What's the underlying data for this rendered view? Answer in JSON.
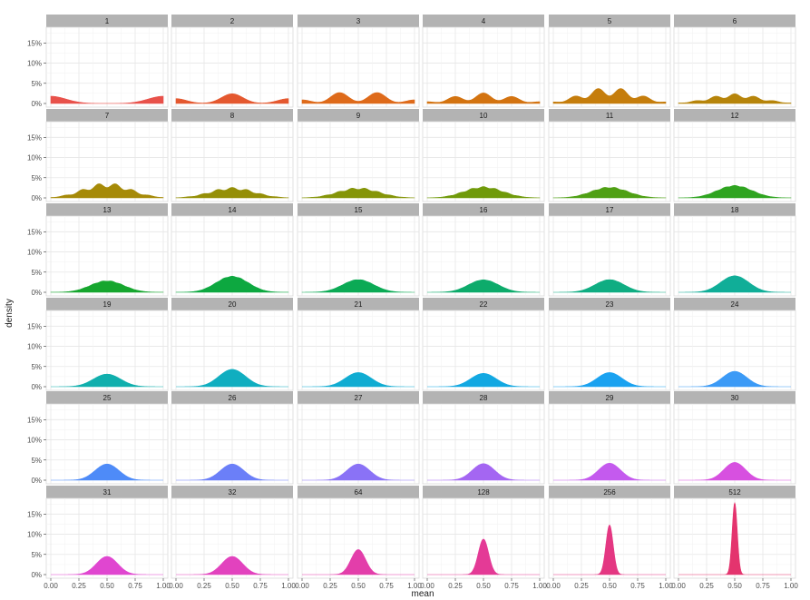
{
  "chart_data": {
    "type": "area",
    "xlabel": "mean",
    "ylabel": "density",
    "xlim": [
      0,
      1
    ],
    "ylim": [
      0,
      0.18
    ],
    "x_ticks": [
      0,
      0.25,
      0.5,
      0.75,
      1
    ],
    "x_tick_labels": [
      "0.00",
      "0.25",
      "0.50",
      "0.75",
      "1.00"
    ],
    "y_ticks": [
      0,
      0.05,
      0.1,
      0.15
    ],
    "y_tick_labels": [
      "0%",
      "5%",
      "10%",
      "15%"
    ],
    "grid": true,
    "legend": "none",
    "facet_columns": 6,
    "panels": [
      {
        "label": "1",
        "n": 1,
        "peak": 0.018,
        "color": "#E8514A"
      },
      {
        "label": "2",
        "n": 2,
        "peak": 0.024,
        "color": "#E4582F"
      },
      {
        "label": "3",
        "n": 3,
        "peak": 0.027,
        "color": "#DE6A1A"
      },
      {
        "label": "4",
        "n": 4,
        "peak": 0.026,
        "color": "#D37310"
      },
      {
        "label": "5",
        "n": 5,
        "peak": 0.037,
        "color": "#C57D0C"
      },
      {
        "label": "6",
        "n": 6,
        "peak": 0.024,
        "color": "#B6840A"
      },
      {
        "label": "7",
        "n": 7,
        "peak": 0.035,
        "color": "#A68A08"
      },
      {
        "label": "8",
        "n": 8,
        "peak": 0.026,
        "color": "#958F07"
      },
      {
        "label": "9",
        "n": 9,
        "peak": 0.024,
        "color": "#859508"
      },
      {
        "label": "10",
        "n": 10,
        "peak": 0.028,
        "color": "#709A0A"
      },
      {
        "label": "11",
        "n": 11,
        "peak": 0.026,
        "color": "#4FA014"
      },
      {
        "label": "12",
        "n": 12,
        "peak": 0.031,
        "color": "#2FA420"
      },
      {
        "label": "13",
        "n": 13,
        "peak": 0.028,
        "color": "#16A62E"
      },
      {
        "label": "14",
        "n": 14,
        "peak": 0.04,
        "color": "#0DA840"
      },
      {
        "label": "15",
        "n": 15,
        "peak": 0.031,
        "color": "#0BAA55"
      },
      {
        "label": "16",
        "n": 16,
        "peak": 0.031,
        "color": "#0DAB6B"
      },
      {
        "label": "17",
        "n": 17,
        "peak": 0.031,
        "color": "#0FAD82"
      },
      {
        "label": "18",
        "n": 18,
        "peak": 0.041,
        "color": "#10AE98"
      },
      {
        "label": "19",
        "n": 19,
        "peak": 0.031,
        "color": "#10AFAD"
      },
      {
        "label": "20",
        "n": 20,
        "peak": 0.043,
        "color": "#10AEC0"
      },
      {
        "label": "21",
        "n": 21,
        "peak": 0.035,
        "color": "#10ACD2"
      },
      {
        "label": "22",
        "n": 22,
        "peak": 0.033,
        "color": "#12A8E2"
      },
      {
        "label": "23",
        "n": 23,
        "peak": 0.035,
        "color": "#1AA2F0"
      },
      {
        "label": "24",
        "n": 24,
        "peak": 0.038,
        "color": "#3B9AF6"
      },
      {
        "label": "25",
        "n": 25,
        "peak": 0.04,
        "color": "#4E8BF8"
      },
      {
        "label": "26",
        "n": 26,
        "peak": 0.04,
        "color": "#6B7FF8"
      },
      {
        "label": "27",
        "n": 27,
        "peak": 0.04,
        "color": "#8A72F6"
      },
      {
        "label": "28",
        "n": 28,
        "peak": 0.041,
        "color": "#A466F2"
      },
      {
        "label": "29",
        "n": 29,
        "peak": 0.042,
        "color": "#C45AEE"
      },
      {
        "label": "30",
        "n": 30,
        "peak": 0.044,
        "color": "#D750E0"
      },
      {
        "label": "31",
        "n": 31,
        "peak": 0.045,
        "color": "#E046D0"
      },
      {
        "label": "32",
        "n": 32,
        "peak": 0.045,
        "color": "#E242BE"
      },
      {
        "label": "64",
        "n": 64,
        "peak": 0.062,
        "color": "#E33EAA"
      },
      {
        "label": "128",
        "n": 128,
        "peak": 0.088,
        "color": "#E43A96"
      },
      {
        "label": "256",
        "n": 256,
        "peak": 0.123,
        "color": "#E43782"
      },
      {
        "label": "512",
        "n": 512,
        "peak": 0.178,
        "color": "#E4346E"
      }
    ]
  }
}
